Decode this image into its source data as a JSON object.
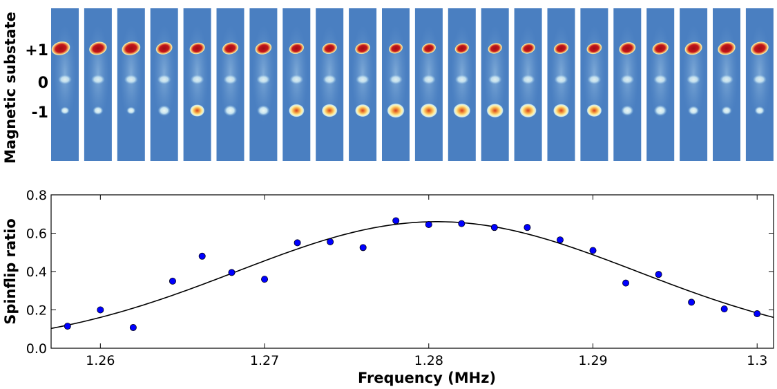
{
  "images_panel": {
    "ylabel": "Magnetic substate",
    "state_labels": [
      "+1",
      "0",
      "-1"
    ],
    "frame_count": 22,
    "colors": {
      "background": "#4a7fc1",
      "low": "#b9dcef",
      "mid": "#fff3a8",
      "high": "#c4161c"
    }
  },
  "chart_data": {
    "type": "scatter",
    "xlabel": "Frequency (MHz)",
    "ylabel": "Spinflip ratio",
    "xlim": [
      1.257,
      1.301
    ],
    "ylim": [
      0,
      0.8
    ],
    "xticks": [
      1.26,
      1.27,
      1.28,
      1.29,
      1.3
    ],
    "xtick_labels": [
      "1.26",
      "1.27",
      "1.28",
      "1.29",
      "1.3"
    ],
    "yticks": [
      0,
      0.2,
      0.4,
      0.6,
      0.8
    ],
    "ytick_labels": [
      "0.0",
      "0.2",
      "0.4",
      "0.6",
      "0.8"
    ],
    "grid": false,
    "marker_color": "#0000ff",
    "points": {
      "x": [
        1.258,
        1.26,
        1.262,
        1.2644,
        1.2662,
        1.268,
        1.27,
        1.272,
        1.274,
        1.276,
        1.278,
        1.28,
        1.282,
        1.284,
        1.286,
        1.288,
        1.29,
        1.292,
        1.294,
        1.296,
        1.298,
        1.3
      ],
      "y": [
        0.115,
        0.2,
        0.108,
        0.35,
        0.48,
        0.395,
        0.36,
        0.55,
        0.555,
        0.525,
        0.665,
        0.645,
        0.65,
        0.63,
        0.63,
        0.565,
        0.51,
        0.34,
        0.385,
        0.24,
        0.205,
        0.18
      ]
    },
    "fit": {
      "type": "gaussian",
      "color": "#000000",
      "amplitude": 0.66,
      "center": 1.2805,
      "sigma": 0.0122
    }
  }
}
